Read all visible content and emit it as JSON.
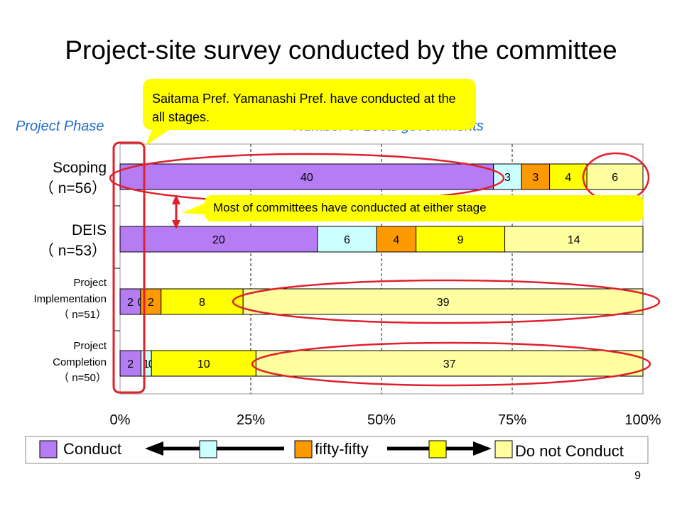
{
  "title": "Project-site survey conducted by the committee",
  "ylabel": "Project Phase",
  "xlabel": "Number of Local governments",
  "callouts": {
    "top": "Saitama Pref. Yamanashi Pref. have conducted at the all stages.",
    "middle": "Most of committees have conducted at either stage"
  },
  "rows": [
    {
      "name": "Scoping",
      "n": "（ n=56）"
    },
    {
      "name": "DEIS",
      "n": "（ n=53）"
    },
    {
      "name1": "Project",
      "name2": "Implementation",
      "n": "（ n=51）"
    },
    {
      "name1": "Project",
      "name2": "Completion",
      "n": "（ n=50）"
    }
  ],
  "legend": {
    "conduct": "Conduct",
    "fifty": "fifty-fifty",
    "not_conduct": "Do not Conduct"
  },
  "page_number": "9",
  "colors": {
    "conduct": "#b57cf4",
    "mostly_conduct": "#ccffff",
    "fifty": "#ff9900",
    "mostly_not": "#ffff00",
    "not_conduct": "#ffffa0",
    "highlight": "#e0202a",
    "callout": "#ffff00",
    "accent": "#1f6ccf"
  },
  "chart_data": {
    "type": "bar",
    "orientation": "horizontal",
    "stacked": true,
    "normalized": true,
    "title": "Project-site survey conducted by the committee",
    "xlabel": "Number of Local governments",
    "ylabel": "Project Phase",
    "xlim": [
      0,
      100
    ],
    "x_ticks": [
      "0%",
      "25%",
      "50%",
      "75%",
      "100%"
    ],
    "categories": [
      "Scoping",
      "DEIS",
      "Project Implementation",
      "Project Completion"
    ],
    "series": [
      {
        "key": "conduct",
        "values": [
          40,
          20,
          2,
          2
        ]
      },
      {
        "key": "mostly_conduct",
        "values": [
          3,
          6,
          0,
          1
        ]
      },
      {
        "key": "fifty",
        "values": [
          3,
          4,
          2,
          0
        ]
      },
      {
        "key": "mostly_not",
        "values": [
          4,
          9,
          8,
          10
        ]
      },
      {
        "key": "not_conduct",
        "values": [
          6,
          14,
          39,
          37
        ]
      }
    ]
  }
}
